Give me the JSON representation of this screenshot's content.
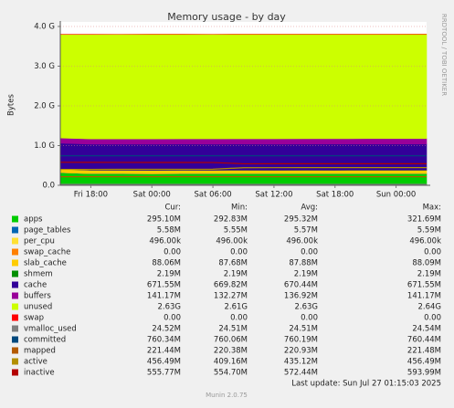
{
  "chart_data": {
    "type": "area",
    "title": "Memory usage - by day",
    "y_label": "Bytes",
    "watermark": "RRDTOOL / TOBI OETIKER",
    "last_update": "Last update: Sun Jul 27 01:15:03 2025",
    "footer": "Munin 2.0.75",
    "grid": true,
    "categories": [
      null,
      "Fri 18:00",
      null,
      "Sat 00:00",
      null,
      "Sat 06:00",
      null,
      "Sat 12:00",
      null,
      "Sat 18:00",
      null,
      "Sun 00:00",
      null
    ],
    "ylim": [
      0,
      4294967296
    ],
    "yticks": [
      {
        "value": 0,
        "label": "0.0"
      },
      {
        "value": 1073741824,
        "label": "1.0 G"
      },
      {
        "value": 2147483648,
        "label": "2.0 G"
      },
      {
        "value": 3221225472,
        "label": "3.0 G"
      },
      {
        "value": 4294967296,
        "label": "4.0 G"
      }
    ],
    "stats_header": [
      "Cur:",
      "Min:",
      "Avg:",
      "Max:"
    ],
    "series": [
      {
        "name": "apps",
        "color": "#00cc00",
        "stack": true,
        "stats": [
          "295.10M",
          "292.83M",
          "295.32M",
          "321.69M"
        ],
        "values": [
          337000000,
          310000000,
          309000000,
          308000000,
          310000000,
          309000000,
          310000000,
          309000000,
          310000000,
          309000000,
          309500000,
          310000000,
          309400000
        ]
      },
      {
        "name": "page_tables",
        "color": "#0066b3",
        "stack": true,
        "stats": [
          "5.58M",
          "5.55M",
          "5.57M",
          "5.59M"
        ],
        "values": [
          5850000,
          5850000,
          5840000,
          5850000,
          5860000,
          5850000,
          5840000,
          5850000,
          5850000,
          5860000,
          5850000,
          5850000,
          5850000
        ]
      },
      {
        "name": "per_cpu",
        "color": "#ffe033",
        "stack": true,
        "stats": [
          "496.00k",
          "496.00k",
          "496.00k",
          "496.00k"
        ],
        "values": [
          507904,
          507904,
          507904,
          507904,
          507904,
          507904,
          507904,
          507904,
          507904,
          507904,
          507904,
          507904,
          507904
        ]
      },
      {
        "name": "swap_cache",
        "color": "#ff8000",
        "stack": true,
        "stats": [
          "0.00",
          "0.00",
          "0.00",
          "0.00"
        ],
        "values": [
          0,
          0,
          0,
          0,
          0,
          0,
          0,
          0,
          0,
          0,
          0,
          0,
          0
        ]
      },
      {
        "name": "slab_cache",
        "color": "#ffcc00",
        "stack": true,
        "stats": [
          "88.06M",
          "87.68M",
          "87.88M",
          "88.09M"
        ],
        "values": [
          92000000,
          92100000,
          92200000,
          92100000,
          92000000,
          92200000,
          92300000,
          92100000,
          92200000,
          92300000,
          92300000,
          92300000,
          92300000
        ]
      },
      {
        "name": "shmem",
        "color": "#008f00",
        "stack": true,
        "stats": [
          "2.19M",
          "2.19M",
          "2.19M",
          "2.19M"
        ],
        "values": [
          2296000,
          2296000,
          2296000,
          2296000,
          2296000,
          2296000,
          2296000,
          2296000,
          2296000,
          2296000,
          2296000,
          2296000,
          2296000
        ]
      },
      {
        "name": "cache",
        "color": "#330099",
        "stack": true,
        "stats": [
          "671.55M",
          "669.82M",
          "670.44M",
          "671.55M"
        ],
        "values": [
          702400000,
          702500000,
          702700000,
          702900000,
          703000000,
          703100000,
          703200000,
          703300000,
          703500000,
          703700000,
          703900000,
          704100000,
          704200000
        ]
      },
      {
        "name": "buffers",
        "color": "#990099",
        "stack": true,
        "stats": [
          "141.17M",
          "132.27M",
          "136.92M",
          "141.17M"
        ],
        "values": [
          138700000,
          139600000,
          140500000,
          141400000,
          142400000,
          143300000,
          144200000,
          145100000,
          146000000,
          146800000,
          147500000,
          147900000,
          148000000
        ]
      },
      {
        "name": "unused",
        "color": "#ccff00",
        "stack": true,
        "stats": [
          "2.63G",
          "2.61G",
          "2.63G",
          "2.64G"
        ],
        "values": [
          2802000000,
          2828000000,
          2829000000,
          2830000000,
          2827000000,
          2826000000,
          2825000000,
          2825000000,
          2823000000,
          2823000000,
          2822000000,
          2821000000,
          2823000000
        ]
      },
      {
        "name": "swap",
        "color": "#ff0000",
        "stack": true,
        "stats": [
          "0.00",
          "0.00",
          "0.00",
          "0.00"
        ],
        "values": [
          0,
          0,
          0,
          0,
          0,
          0,
          0,
          0,
          0,
          0,
          0,
          0,
          0
        ]
      },
      {
        "name": "vmalloc_used",
        "color": "#808080",
        "stack": false,
        "stats": [
          "24.52M",
          "24.51M",
          "24.51M",
          "24.54M"
        ],
        "values": [
          25700000,
          25700000,
          25700000,
          25700000,
          25700000,
          25700000,
          25700000,
          25700000,
          25700000,
          25700000,
          25700000,
          25700000,
          25710000
        ]
      },
      {
        "name": "committed",
        "color": "#00487d",
        "stack": false,
        "stats": [
          "760.34M",
          "760.06M",
          "760.19M",
          "760.44M"
        ],
        "values": [
          797100000,
          797000000,
          797100000,
          797200000,
          797100000,
          797000000,
          797200000,
          797100000,
          797300000,
          797200000,
          797300000,
          797400000,
          797300000
        ]
      },
      {
        "name": "mapped",
        "color": "#b35a00",
        "stack": false,
        "stats": [
          "221.44M",
          "220.38M",
          "220.93M",
          "221.48M"
        ],
        "values": [
          231100000,
          231300000,
          231500000,
          231600000,
          231700000,
          231800000,
          231700000,
          231800000,
          231900000,
          232000000,
          232100000,
          232200000,
          232200000
        ]
      },
      {
        "name": "active",
        "color": "#b38f00",
        "stack": false,
        "stats": [
          "456.49M",
          "409.16M",
          "435.12M",
          "456.49M"
        ],
        "values": [
          430000000,
          431000000,
          432000000,
          433000000,
          434000000,
          435000000,
          476000000,
          477000000,
          477500000,
          478000000,
          478300000,
          478500000,
          478670000
        ]
      },
      {
        "name": "inactive",
        "color": "#b30000",
        "stack": false,
        "stats": [
          "555.77M",
          "554.70M",
          "572.44M",
          "593.99M"
        ],
        "values": [
          622000000,
          620000000,
          619000000,
          618000000,
          617000000,
          616000000,
          582000000,
          582500000,
          582300000,
          582500000,
          582600000,
          582700000,
          582770000
        ]
      }
    ]
  }
}
